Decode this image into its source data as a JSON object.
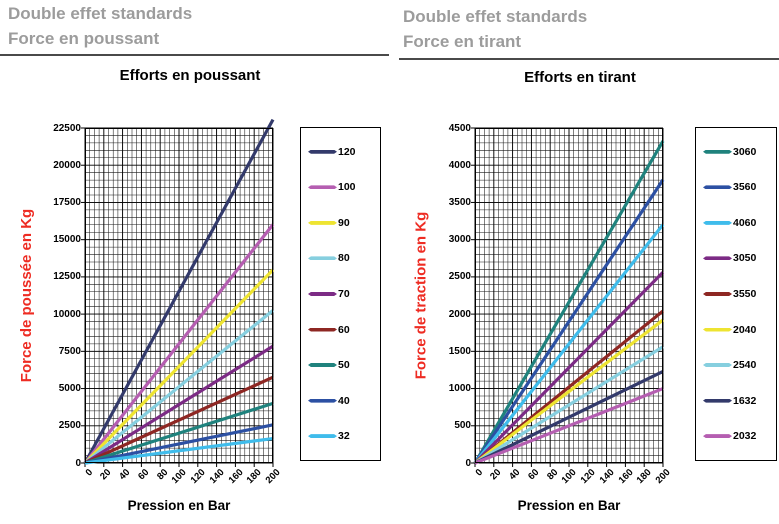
{
  "headers": [
    {
      "line1": "Double effet standards",
      "line2": "Force en poussant"
    },
    {
      "line1": "Double effet standards",
      "line2": "Force en tirant"
    }
  ],
  "colors": {
    "header_gray": "#9c9c9c",
    "rule_gray": "#4a4a4a",
    "axis_title_red": "#ee2c23",
    "grid_minor": "#1a1a1a",
    "grid_major": "#000000",
    "plot_border": "#000000"
  },
  "chart_data": [
    {
      "type": "line",
      "title": "Efforts en poussant",
      "ylabel": "Force de poussée  en Kg",
      "xlabel": "Pression  en Bar",
      "xlim": [
        0,
        200
      ],
      "ylim": [
        0,
        22500
      ],
      "x_major_step": 20,
      "x_minor_step": 5,
      "y_major_step": 2500,
      "y_minor_step": 500,
      "x_ticks": [
        0,
        20,
        40,
        60,
        80,
        100,
        120,
        140,
        160,
        180,
        200
      ],
      "y_ticks": [
        0,
        2500,
        5000,
        7500,
        10000,
        12500,
        15000,
        17500,
        20000,
        22500
      ],
      "grid": true,
      "legend_position": "right",
      "series": [
        {
          "name": "120",
          "color": "#333a6b",
          "x": [
            0,
            200
          ],
          "y": [
            0,
            23065
          ]
        },
        {
          "name": "100",
          "color": "#b55eb1",
          "x": [
            0,
            200
          ],
          "y": [
            0,
            16018
          ]
        },
        {
          "name": "90",
          "color": "#eee431",
          "x": [
            0,
            200
          ],
          "y": [
            0,
            12975
          ]
        },
        {
          "name": "80",
          "color": "#86cfdf",
          "x": [
            0,
            200
          ],
          "y": [
            0,
            10251
          ]
        },
        {
          "name": "70",
          "color": "#7c2b85",
          "x": [
            0,
            200
          ],
          "y": [
            0,
            7849
          ]
        },
        {
          "name": "60",
          "color": "#8e2723",
          "x": [
            0,
            200
          ],
          "y": [
            0,
            5766
          ]
        },
        {
          "name": "50",
          "color": "#1f827d",
          "x": [
            0,
            200
          ],
          "y": [
            0,
            4004
          ]
        },
        {
          "name": "40",
          "color": "#2c50a3",
          "x": [
            0,
            200
          ],
          "y": [
            0,
            2563
          ]
        },
        {
          "name": "32",
          "color": "#3fbceb",
          "x": [
            0,
            200
          ],
          "y": [
            0,
            1640
          ]
        }
      ]
    },
    {
      "type": "line",
      "title": "Efforts en tirant",
      "ylabel": "Force de traction en Kg",
      "xlabel": "Pression  en Bar",
      "xlim": [
        0,
        200
      ],
      "ylim": [
        0,
        4500
      ],
      "x_major_step": 20,
      "x_minor_step": 5,
      "y_major_step": 500,
      "y_minor_step": 100,
      "x_ticks": [
        0,
        20,
        40,
        60,
        80,
        100,
        120,
        140,
        160,
        180,
        200
      ],
      "y_ticks": [
        0,
        500,
        1000,
        1500,
        2000,
        2500,
        3000,
        3500,
        4000,
        4500
      ],
      "grid": true,
      "legend_position": "right",
      "series": [
        {
          "name": "3060",
          "color": "#1f827d",
          "x": [
            0,
            200
          ],
          "y": [
            0,
            4325
          ]
        },
        {
          "name": "3560",
          "color": "#2c50a3",
          "x": [
            0,
            200
          ],
          "y": [
            0,
            3804
          ]
        },
        {
          "name": "4060",
          "color": "#3fbceb",
          "x": [
            0,
            200
          ],
          "y": [
            0,
            3203
          ]
        },
        {
          "name": "3050",
          "color": "#7c2b85",
          "x": [
            0,
            200
          ],
          "y": [
            0,
            2563
          ]
        },
        {
          "name": "3550",
          "color": "#8e2723",
          "x": [
            0,
            200
          ],
          "y": [
            0,
            2042
          ]
        },
        {
          "name": "2040",
          "color": "#eee431",
          "x": [
            0,
            200
          ],
          "y": [
            0,
            1922
          ]
        },
        {
          "name": "2540",
          "color": "#86cfdf",
          "x": [
            0,
            200
          ],
          "y": [
            0,
            1562
          ]
        },
        {
          "name": "1632",
          "color": "#333a6b",
          "x": [
            0,
            200
          ],
          "y": [
            0,
            1230
          ]
        },
        {
          "name": "2032",
          "color": "#b55eb1",
          "x": [
            0,
            200
          ],
          "y": [
            0,
            1000
          ]
        }
      ]
    }
  ]
}
